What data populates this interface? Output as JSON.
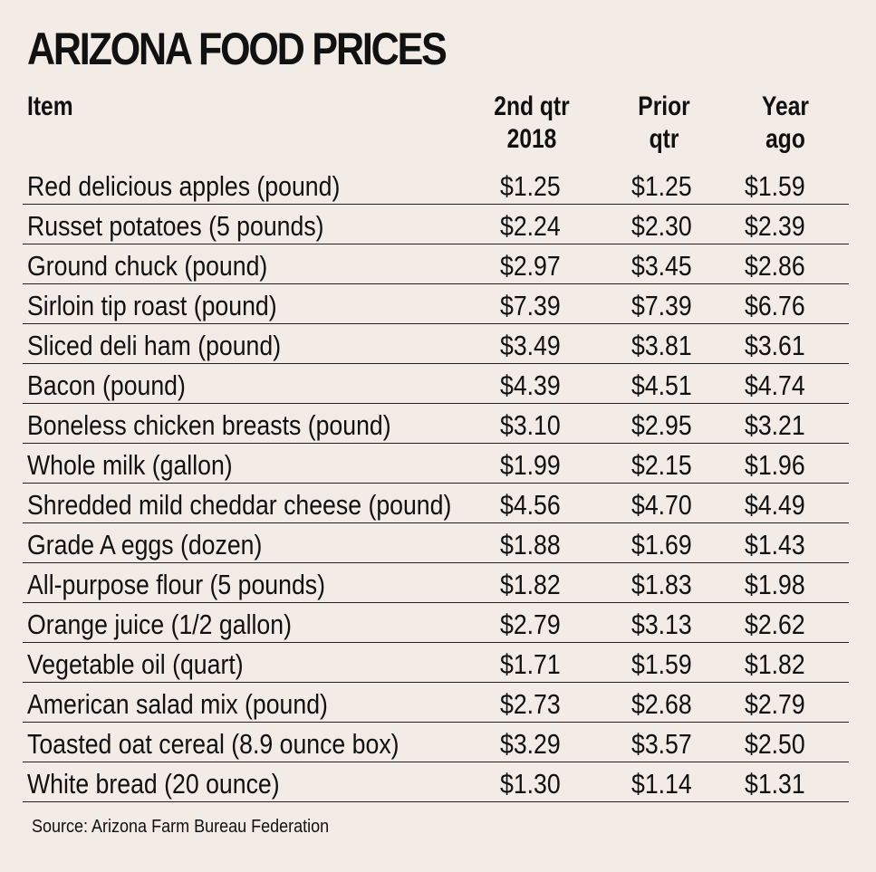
{
  "title": "ARIZONA FOOD PRICES",
  "source": "Source: Arizona Farm Bureau Federation",
  "chart_data": {
    "type": "table",
    "title": "ARIZONA FOOD PRICES",
    "columns": [
      "Item",
      "2nd qtr\n2018",
      "Prior\nqtr",
      "Year\nago"
    ],
    "rows": [
      [
        "Red delicious apples (pound)",
        "$1.25",
        "$1.25",
        "$1.59"
      ],
      [
        "Russet potatoes (5 pounds)",
        "$2.24",
        "$2.30",
        "$2.39"
      ],
      [
        "Ground chuck (pound)",
        "$2.97",
        "$3.45",
        "$2.86"
      ],
      [
        "Sirloin tip roast (pound)",
        "$7.39",
        "$7.39",
        "$6.76"
      ],
      [
        "Sliced deli ham (pound)",
        "$3.49",
        "$3.81",
        "$3.61"
      ],
      [
        "Bacon (pound)",
        "$4.39",
        "$4.51",
        "$4.74"
      ],
      [
        "Boneless chicken breasts (pound)",
        "$3.10",
        "$2.95",
        "$3.21"
      ],
      [
        "Whole milk (gallon)",
        "$1.99",
        "$2.15",
        "$1.96"
      ],
      [
        "Shredded mild cheddar cheese (pound)",
        "$4.56",
        "$4.70",
        "$4.49"
      ],
      [
        "Grade A eggs (dozen)",
        "$1.88",
        "$1.69",
        "$1.43"
      ],
      [
        "All-purpose flour (5 pounds)",
        "$1.82",
        "$1.83",
        "$1.98"
      ],
      [
        "Orange juice (1/2 gallon)",
        "$2.79",
        "$3.13",
        "$2.62"
      ],
      [
        "Vegetable oil (quart)",
        "$1.71",
        "$1.59",
        "$1.82"
      ],
      [
        "American salad mix (pound)",
        "$2.73",
        "$2.68",
        "$2.79"
      ],
      [
        "Toasted oat cereal (8.9 ounce box)",
        "$3.29",
        "$3.57",
        "$2.50"
      ],
      [
        "White bread (20 ounce)",
        "$1.30",
        "$1.14",
        "$1.31"
      ]
    ]
  }
}
